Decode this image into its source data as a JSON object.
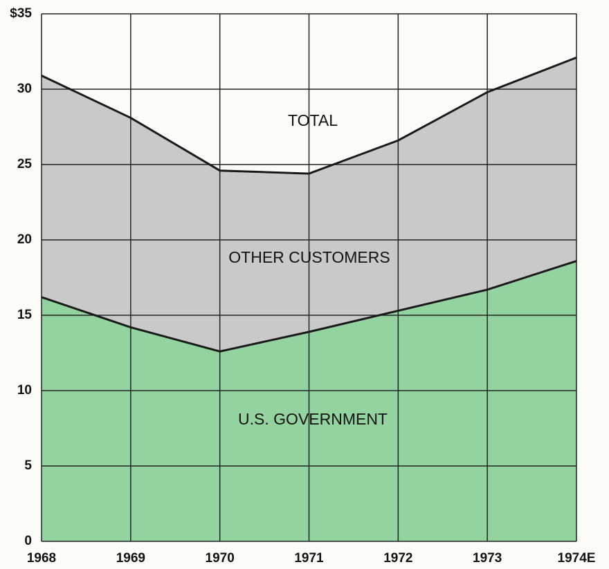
{
  "chart_data": {
    "type": "stacked_area",
    "categories": [
      "1968",
      "1969",
      "1970",
      "1971",
      "1972",
      "1973",
      "1974E"
    ],
    "series": [
      {
        "name": "U.S. GOVERNMENT",
        "color": "#93d3a0",
        "values": [
          16.2,
          14.2,
          12.6,
          13.9,
          15.3,
          16.7,
          18.6
        ]
      },
      {
        "name": "OTHER CUSTOMERS",
        "color": "#c9c9c9",
        "values": [
          14.7,
          13.9,
          12.0,
          10.5,
          11.3,
          13.1,
          13.5
        ]
      }
    ],
    "annotation": "TOTAL",
    "ylim": [
      0,
      35
    ],
    "yticks": [
      0,
      5,
      10,
      15,
      20,
      25,
      30,
      {
        "value": 35,
        "label": "$35"
      }
    ],
    "grid": true
  }
}
